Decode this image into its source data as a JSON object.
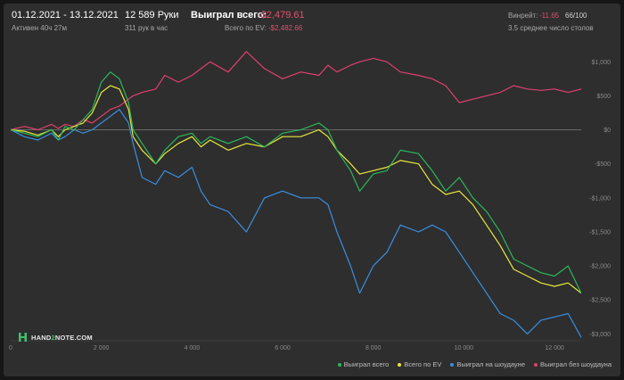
{
  "header": {
    "date_range": "01.12.2021 - 13.12.2021",
    "active": "Активен 40ч 27м",
    "hands": "12 589 Руки",
    "hands_per_hour": "311 рук в час",
    "won_label": "Выиграл всего:",
    "won_value": "-$2,479.61",
    "ev_label": "Всего по EV:",
    "ev_value": "-$2,482.66",
    "winrate_label": "Винрейт:",
    "winrate_value": "-11.65",
    "winrate_hands": "66/100",
    "tables": "3.5 среднее число столов"
  },
  "logo": {
    "text_a": "HAND",
    "text_b": "2",
    "text_c": "NOTE.COM"
  },
  "colors": {
    "won": "#2bb85a",
    "ev": "#e8e83c",
    "showdown": "#3a8fe0",
    "non_showdown": "#e0406e"
  },
  "chart_data": {
    "type": "line",
    "xlim": [
      0,
      12589
    ],
    "ylim": [
      -3100,
      1200
    ],
    "x_ticks": [
      0,
      2000,
      4000,
      6000,
      8000,
      10000,
      12000
    ],
    "x_tick_labels": [
      "0",
      "2 000",
      "4 000",
      "6 000",
      "8 000",
      "10 000",
      "12 000"
    ],
    "y_ticks": [
      1000,
      500,
      0,
      -500,
      -1000,
      -1500,
      -2000,
      -2500,
      -3000
    ],
    "y_tick_labels": [
      "$1,000",
      "$500",
      "$0",
      "-$500",
      "-$1,000",
      "-$1,500",
      "-$2,000",
      "-$2,500",
      "-$3,000"
    ],
    "grid": "zero line only",
    "legend_position": "bottom-right",
    "series": [
      {
        "name": "Выиграл всего",
        "x": [
          0,
          300,
          600,
          900,
          1050,
          1200,
          1400,
          1600,
          1800,
          2000,
          2200,
          2400,
          2600,
          2700,
          2900,
          3200,
          3400,
          3700,
          4000,
          4200,
          4400,
          4800,
          5200,
          5600,
          6000,
          6400,
          6800,
          7000,
          7200,
          7500,
          7700,
          8000,
          8300,
          8600,
          9000,
          9300,
          9600,
          9900,
          10200,
          10500,
          10800,
          11100,
          11400,
          11700,
          12000,
          12300,
          12589
        ],
        "y": [
          0,
          -50,
          -100,
          0,
          -150,
          50,
          0,
          150,
          300,
          700,
          850,
          750,
          400,
          0,
          -200,
          -500,
          -300,
          -100,
          -50,
          -200,
          -100,
          -200,
          -100,
          -250,
          -50,
          0,
          100,
          0,
          -300,
          -600,
          -900,
          -650,
          -600,
          -300,
          -350,
          -600,
          -900,
          -700,
          -1000,
          -1200,
          -1500,
          -1900,
          -2000,
          -2100,
          -2150,
          -2000,
          -2400
        ]
      },
      {
        "name": "Всего по EV",
        "x": [
          0,
          300,
          600,
          900,
          1050,
          1200,
          1400,
          1600,
          1800,
          2000,
          2200,
          2400,
          2600,
          2700,
          2900,
          3200,
          3400,
          3700,
          4000,
          4200,
          4400,
          4800,
          5200,
          5600,
          6000,
          6400,
          6800,
          7000,
          7200,
          7500,
          7700,
          8000,
          8300,
          8600,
          9000,
          9300,
          9600,
          9900,
          10200,
          10500,
          10800,
          11100,
          11400,
          11700,
          12000,
          12300,
          12589
        ],
        "y": [
          0,
          -20,
          -80,
          0,
          -100,
          0,
          50,
          100,
          250,
          550,
          650,
          600,
          300,
          -100,
          -300,
          -500,
          -350,
          -200,
          -100,
          -250,
          -150,
          -300,
          -200,
          -250,
          -100,
          -100,
          0,
          -100,
          -300,
          -500,
          -650,
          -600,
          -550,
          -450,
          -500,
          -800,
          -950,
          -900,
          -1100,
          -1400,
          -1700,
          -2050,
          -2150,
          -2250,
          -2300,
          -2250,
          -2400
        ]
      },
      {
        "name": "Выиграл на шоудауне",
        "x": [
          0,
          300,
          600,
          900,
          1050,
          1200,
          1400,
          1600,
          1800,
          2000,
          2200,
          2400,
          2600,
          2700,
          2900,
          3200,
          3400,
          3700,
          4000,
          4200,
          4400,
          4800,
          5200,
          5600,
          6000,
          6400,
          6800,
          7000,
          7200,
          7500,
          7700,
          8000,
          8300,
          8600,
          9000,
          9300,
          9600,
          9900,
          10200,
          10500,
          10800,
          11100,
          11400,
          11700,
          12000,
          12300,
          12589
        ],
        "y": [
          0,
          -100,
          -150,
          -50,
          -150,
          -100,
          0,
          -50,
          0,
          100,
          200,
          300,
          100,
          -200,
          -700,
          -800,
          -600,
          -700,
          -550,
          -900,
          -1100,
          -1200,
          -1500,
          -1000,
          -900,
          -1000,
          -1000,
          -1100,
          -1500,
          -2000,
          -2400,
          -2000,
          -1800,
          -1400,
          -1500,
          -1400,
          -1500,
          -1800,
          -2100,
          -2400,
          -2700,
          -2800,
          -3000,
          -2800,
          -2750,
          -2700,
          -3050
        ]
      },
      {
        "name": "Выиграл без шоудауна",
        "x": [
          0,
          300,
          600,
          900,
          1050,
          1200,
          1400,
          1600,
          1800,
          2000,
          2200,
          2400,
          2600,
          2700,
          2900,
          3200,
          3400,
          3700,
          4000,
          4200,
          4400,
          4800,
          5200,
          5600,
          6000,
          6400,
          6800,
          7000,
          7200,
          7500,
          7700,
          8000,
          8300,
          8600,
          9000,
          9300,
          9600,
          9900,
          10200,
          10500,
          10800,
          11100,
          11400,
          11700,
          12000,
          12300,
          12589
        ],
        "y": [
          0,
          50,
          0,
          80,
          20,
          80,
          50,
          150,
          100,
          200,
          300,
          350,
          450,
          500,
          550,
          600,
          800,
          700,
          800,
          900,
          1000,
          850,
          1150,
          900,
          750,
          850,
          800,
          950,
          850,
          950,
          1000,
          1050,
          1000,
          850,
          800,
          750,
          650,
          400,
          450,
          500,
          550,
          650,
          600,
          580,
          600,
          550,
          600
        ]
      }
    ]
  }
}
